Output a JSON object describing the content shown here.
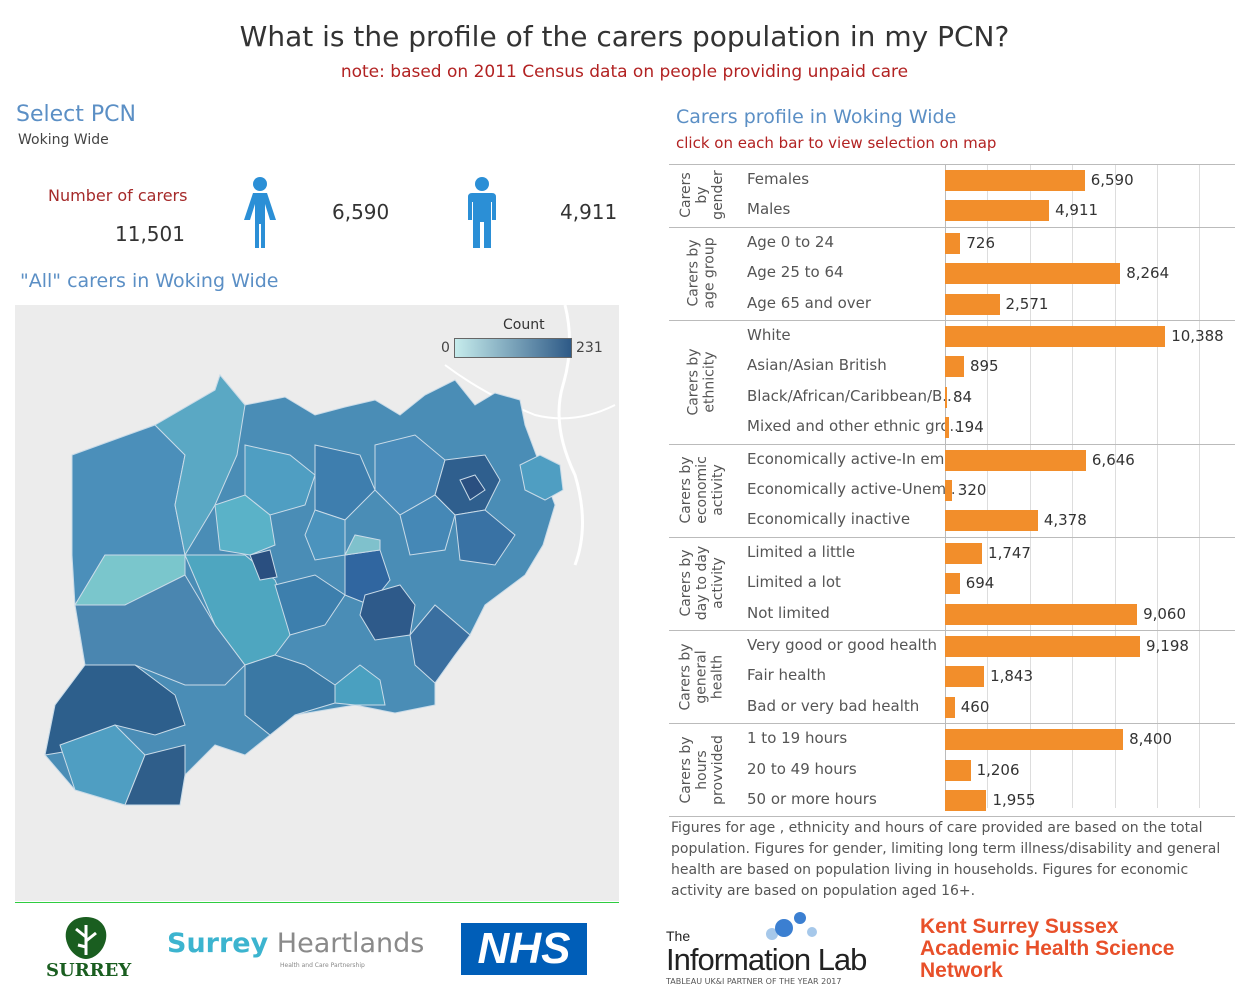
{
  "header": {
    "title": "What is the profile of the carers population in my PCN?",
    "note": "note: based on 2011 Census data on people providing unpaid care"
  },
  "selector": {
    "title": "Select PCN",
    "value": "Woking Wide"
  },
  "kpis": {
    "carers_label": "Number of carers",
    "carers_total": "11,501",
    "female_count": "6,590",
    "male_count": "4,911",
    "female_icon": "female-person-icon",
    "male_icon": "male-person-icon",
    "icon_color": "#2b8fd6"
  },
  "map": {
    "title": "\"All\" carers in Woking Wide",
    "legend": {
      "title": "Count",
      "min": "0",
      "max": "231"
    },
    "colors": {
      "low": "#c6ecec",
      "high": "#2e5a87",
      "background": "#ececec"
    }
  },
  "profile": {
    "title": "Carers profile in Woking Wide",
    "subtitle": "click on each bar to view selection on map",
    "groups": [
      {
        "label": "Carers\nby\ngender",
        "items": [
          {
            "label": "Females",
            "value": 6590,
            "display": "6,590"
          },
          {
            "label": "Males",
            "value": 4911,
            "display": "4,911"
          }
        ]
      },
      {
        "label": "Carers by\nage group",
        "items": [
          {
            "label": "Age 0 to 24",
            "value": 726,
            "display": "726"
          },
          {
            "label": "Age 25 to 64",
            "value": 8264,
            "display": "8,264"
          },
          {
            "label": "Age 65 and over",
            "value": 2571,
            "display": "2,571"
          }
        ]
      },
      {
        "label": "Carers by\nethnicity",
        "items": [
          {
            "label": "White",
            "value": 10388,
            "display": "10,388"
          },
          {
            "label": "Asian/Asian British",
            "value": 895,
            "display": "895"
          },
          {
            "label": "Black/African/Caribbean/B..",
            "value": 84,
            "display": "84"
          },
          {
            "label": "Mixed and other ethnic gro..",
            "value": 194,
            "display": "194"
          }
        ]
      },
      {
        "label": "Carers by\neconomic\nactivity",
        "items": [
          {
            "label": "Economically active-In em..",
            "value": 6646,
            "display": "6,646"
          },
          {
            "label": "Economically active-Unem..",
            "value": 320,
            "display": "320"
          },
          {
            "label": "Economically inactive",
            "value": 4378,
            "display": "4,378"
          }
        ]
      },
      {
        "label": "Carers by\nday to day\nactivity",
        "items": [
          {
            "label": "Limited a little",
            "value": 1747,
            "display": "1,747"
          },
          {
            "label": "Limited a lot",
            "value": 694,
            "display": "694"
          },
          {
            "label": "Not limited",
            "value": 9060,
            "display": "9,060"
          }
        ]
      },
      {
        "label": "Carers by\ngeneral\nhealth",
        "items": [
          {
            "label": "Very good or good health",
            "value": 9198,
            "display": "9,198"
          },
          {
            "label": "Fair health",
            "value": 1843,
            "display": "1,843"
          },
          {
            "label": "Bad or very bad health",
            "value": 460,
            "display": "460"
          }
        ]
      },
      {
        "label": "Carers by\nhours\nprovvided",
        "items": [
          {
            "label": "1 to 19 hours",
            "value": 8400,
            "display": "8,400"
          },
          {
            "label": "20 to 49 hours",
            "value": 1206,
            "display": "1,206"
          },
          {
            "label": "50 or more hours",
            "value": 1955,
            "display": "1,955"
          }
        ]
      }
    ],
    "bar_color": "#f28e2b"
  },
  "chart_data": {
    "type": "bar",
    "orientation": "horizontal",
    "title": "Carers profile in Woking Wide",
    "categories": [
      "Females",
      "Males",
      "Age 0 to 24",
      "Age 25 to 64",
      "Age 65 and over",
      "White",
      "Asian/Asian British",
      "Black/African/Caribbean/B..",
      "Mixed and other ethnic gro..",
      "Economically active-In em..",
      "Economically active-Unem..",
      "Economically inactive",
      "Limited a little",
      "Limited a lot",
      "Not limited",
      "Very good or good health",
      "Fair health",
      "Bad or very bad health",
      "1 to 19 hours",
      "20 to 49 hours",
      "50 or more hours"
    ],
    "values": [
      6590,
      4911,
      726,
      8264,
      2571,
      10388,
      895,
      84,
      194,
      6646,
      320,
      4378,
      1747,
      694,
      9060,
      9198,
      1843,
      460,
      8400,
      1206,
      1955
    ],
    "xlim": [
      0,
      14000
    ],
    "grid": true
  },
  "footnote": "Figures for age , ethnicity and hours of care provided are based on the total population. Figures for gender, limiting long term illness/disability and general health are based on population living in households. Figures for economic activity are based on population aged 16+.",
  "logos": {
    "surrey": "SURREY",
    "heartlands_a": "Surrey",
    "heartlands_b": " Heartlands",
    "heartlands_sub": "Health and Care Partnership",
    "nhs": "NHS",
    "infolab_the": "The",
    "infolab_name": "Information Lab",
    "infolab_tag": "TABLEAU UK&I PARTNER OF THE YEAR 2017",
    "kss_1": "Kent Surrey Sussex",
    "kss_2": "Academic Health Science",
    "kss_3": "Network"
  }
}
